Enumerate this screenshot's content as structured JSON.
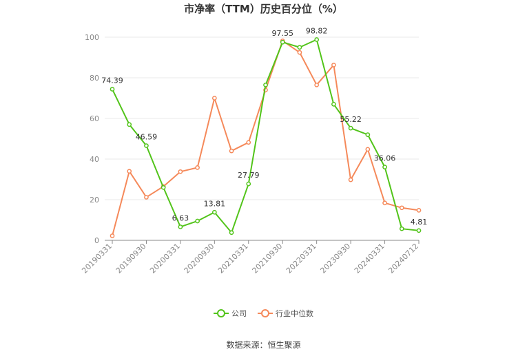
{
  "colors": {
    "company": "#52c41a",
    "industry": "#f5895a",
    "grid": "#e8e8e8",
    "axis": "#888888",
    "text": "#333333"
  },
  "legend": {
    "company": "公司",
    "industry": "行业中位数"
  },
  "source": "数据来源：恒生聚源",
  "chart_data": {
    "type": "line",
    "title": "市净率（TTM）历史百分位（%）",
    "xlabel": "",
    "ylabel": "",
    "ylim": [
      0,
      100
    ],
    "yticks": [
      0,
      20,
      40,
      60,
      80,
      100
    ],
    "grid": true,
    "legend_position": "bottom",
    "x_tick_labels": [
      "20190331",
      "20190930",
      "20200331",
      "20200930",
      "20210331",
      "20210930",
      "20220331",
      "20230930",
      "20240331",
      "20240712"
    ],
    "x_tick_index": [
      0,
      2,
      4,
      6,
      8,
      10,
      12,
      14,
      16,
      18
    ],
    "series": [
      {
        "name": "公司",
        "values": [
          74.39,
          57,
          46.59,
          26,
          6.63,
          9.5,
          13.81,
          3.8,
          27.79,
          76.5,
          97.55,
          95,
          98.82,
          67,
          55.22,
          52,
          36.06,
          5.7,
          4.81
        ],
        "labels": {
          "0": "74.39",
          "2": "46.59",
          "4": "6.63",
          "6": "13.81",
          "8": "27.79",
          "10": "97.55",
          "12": "98.82",
          "14": "55.22",
          "16": "36.06",
          "18": "4.81"
        }
      },
      {
        "name": "行业中位数",
        "values": [
          2.2,
          34,
          21.2,
          26.5,
          33.8,
          35.8,
          70,
          44,
          48.2,
          74,
          98.2,
          92.5,
          76.5,
          86.3,
          29.8,
          44.8,
          18.4,
          16,
          14.8
        ],
        "labels": {}
      }
    ]
  }
}
